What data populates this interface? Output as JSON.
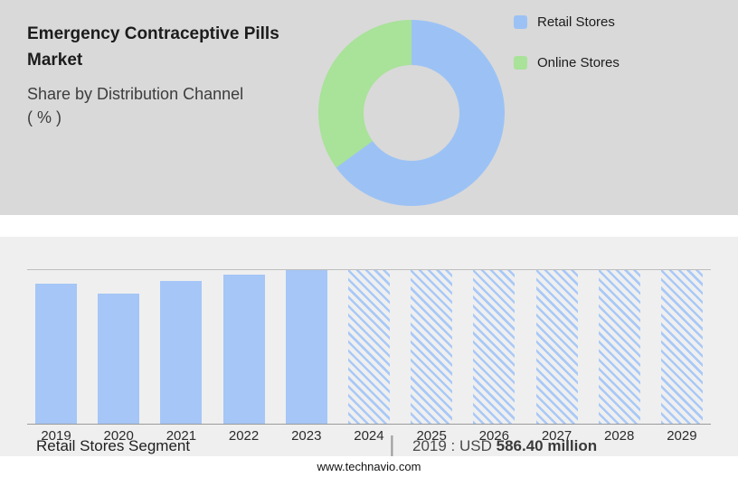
{
  "header": {
    "title_line1": "Emergency Contraceptive Pills",
    "title_line2": "Market",
    "subtitle": "Share by Distribution Channel",
    "unit": "( % )"
  },
  "chart_data": [
    {
      "type": "pie",
      "title": "Share by Distribution Channel ( % )",
      "legend_position": "right",
      "segments": [
        {
          "label": "Retail Stores",
          "value": 65,
          "color": "#9cc2f5"
        },
        {
          "label": "Online Stores",
          "value": 35,
          "color": "#a9e299"
        }
      ]
    },
    {
      "type": "bar",
      "title": "",
      "xlabel": "",
      "ylabel": "",
      "y_axis_labels_visible": false,
      "categories": [
        "2019",
        "2020",
        "2021",
        "2022",
        "2023",
        "2024",
        "2025",
        "2026",
        "2027",
        "2028",
        "2029"
      ],
      "series": [
        {
          "name": "Retail Stores segment size (relative height %)",
          "values": [
            91,
            85,
            93,
            97,
            100,
            100,
            100,
            100,
            100,
            100,
            100
          ]
        }
      ],
      "hatched": [
        false,
        false,
        false,
        false,
        false,
        true,
        true,
        true,
        true,
        true,
        true
      ],
      "bar_color": "#a5c6f6",
      "hatch_color": "#a9c9f7",
      "ylim": [
        0,
        100
      ],
      "grid": false
    }
  ],
  "footer": {
    "segment_label": "Retail Stores Segment",
    "separator": "|",
    "value_prefix": "2019 : USD",
    "value_amount": "586.40 million",
    "website": "www.technavio.com"
  }
}
